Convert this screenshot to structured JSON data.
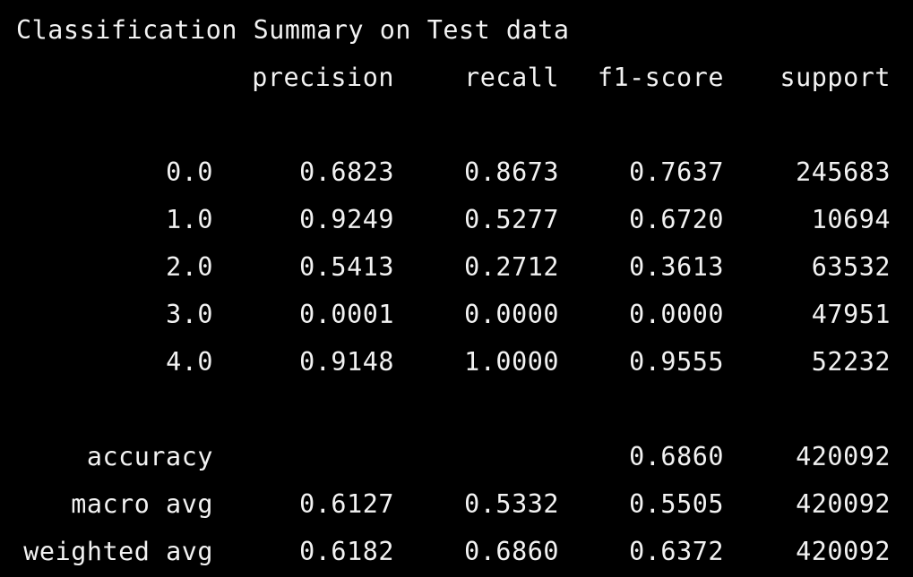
{
  "title": "Classification Summary on Test data",
  "headers": [
    "precision",
    "recall",
    "f1-score",
    "support"
  ],
  "class_rows": [
    {
      "label": "0.0",
      "precision": "0.6823",
      "recall": "0.8673",
      "f1": "0.7637",
      "support": "245683"
    },
    {
      "label": "1.0",
      "precision": "0.9249",
      "recall": "0.5277",
      "f1": "0.6720",
      "support": "10694"
    },
    {
      "label": "2.0",
      "precision": "0.5413",
      "recall": "0.2712",
      "f1": "0.3613",
      "support": "63532"
    },
    {
      "label": "3.0",
      "precision": "0.0001",
      "recall": "0.0000",
      "f1": "0.0000",
      "support": "47951"
    },
    {
      "label": "4.0",
      "precision": "0.9148",
      "recall": "1.0000",
      "f1": "0.9555",
      "support": "52232"
    }
  ],
  "accuracy": {
    "label": "accuracy",
    "f1": "0.6860",
    "support": "420092"
  },
  "macro_avg": {
    "label": "macro avg",
    "precision": "0.6127",
    "recall": "0.5332",
    "f1": "0.5505",
    "support": "420092"
  },
  "weighted_avg": {
    "label": "weighted avg",
    "precision": "0.6182",
    "recall": "0.6860",
    "f1": "0.6372",
    "support": "420092"
  }
}
